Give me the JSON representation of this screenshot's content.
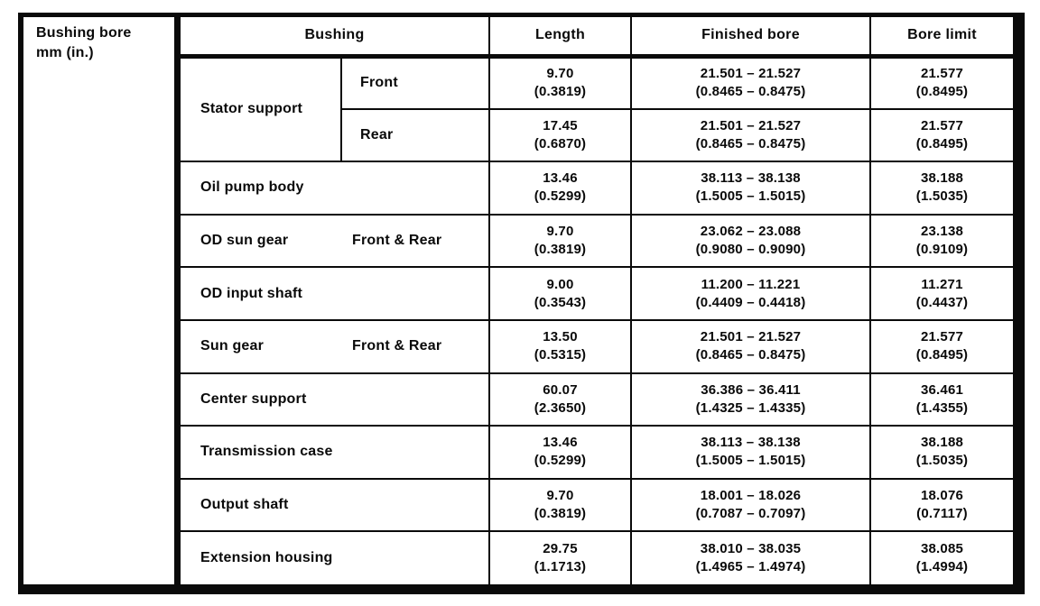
{
  "colors": {
    "ink": "#0a0a0a",
    "paper": "#ffffff"
  },
  "corner_label": {
    "line1": "Bushing bore",
    "line2": "mm (in.)"
  },
  "table": {
    "headers": {
      "bushing": "Bushing",
      "length": "Length",
      "finished_bore": "Finished bore",
      "bore_limit": "Bore limit"
    },
    "rows": [
      {
        "name": "Stator support",
        "position": "Front",
        "length_mm": "9.70",
        "length_in": "(0.3819)",
        "finished_mm": "21.501 – 21.527",
        "finished_in": "(0.8465 – 0.8475)",
        "limit_mm": "21.577",
        "limit_in": "(0.8495)"
      },
      {
        "position": "Rear",
        "length_mm": "17.45",
        "length_in": "(0.6870)",
        "finished_mm": "21.501 – 21.527",
        "finished_in": "(0.8465 – 0.8475)",
        "limit_mm": "21.577",
        "limit_in": "(0.8495)"
      },
      {
        "name": "Oil pump body",
        "length_mm": "13.46",
        "length_in": "(0.5299)",
        "finished_mm": "38.113 – 38.138",
        "finished_in": "(1.5005 – 1.5015)",
        "limit_mm": "38.188",
        "limit_in": "(1.5035)"
      },
      {
        "name": "OD sun gear",
        "position": "Front & Rear",
        "length_mm": "9.70",
        "length_in": "(0.3819)",
        "finished_mm": "23.062 – 23.088",
        "finished_in": "(0.9080 – 0.9090)",
        "limit_mm": "23.138",
        "limit_in": "(0.9109)"
      },
      {
        "name": "OD input shaft",
        "length_mm": "9.00",
        "length_in": "(0.3543)",
        "finished_mm": "11.200 – 11.221",
        "finished_in": "(0.4409 – 0.4418)",
        "limit_mm": "11.271",
        "limit_in": "(0.4437)"
      },
      {
        "name": "Sun gear",
        "position": "Front & Rear",
        "length_mm": "13.50",
        "length_in": "(0.5315)",
        "finished_mm": "21.501 – 21.527",
        "finished_in": "(0.8465 – 0.8475)",
        "limit_mm": "21.577",
        "limit_in": "(0.8495)"
      },
      {
        "name": "Center support",
        "length_mm": "60.07",
        "length_in": "(2.3650)",
        "finished_mm": "36.386 – 36.411",
        "finished_in": "(1.4325 – 1.4335)",
        "limit_mm": "36.461",
        "limit_in": "(1.4355)"
      },
      {
        "name": "Transmission case",
        "length_mm": "13.46",
        "length_in": "(0.5299)",
        "finished_mm": "38.113 – 38.138",
        "finished_in": "(1.5005 – 1.5015)",
        "limit_mm": "38.188",
        "limit_in": "(1.5035)"
      },
      {
        "name": "Output shaft",
        "length_mm": "9.70",
        "length_in": "(0.3819)",
        "finished_mm": "18.001 – 18.026",
        "finished_in": "(0.7087 – 0.7097)",
        "limit_mm": "18.076",
        "limit_in": "(0.7117)"
      },
      {
        "name": "Extension housing",
        "length_mm": "29.75",
        "length_in": "(1.1713)",
        "finished_mm": "38.010 – 38.035",
        "finished_in": "(1.4965 – 1.4974)",
        "limit_mm": "38.085",
        "limit_in": "(1.4994)"
      }
    ]
  }
}
